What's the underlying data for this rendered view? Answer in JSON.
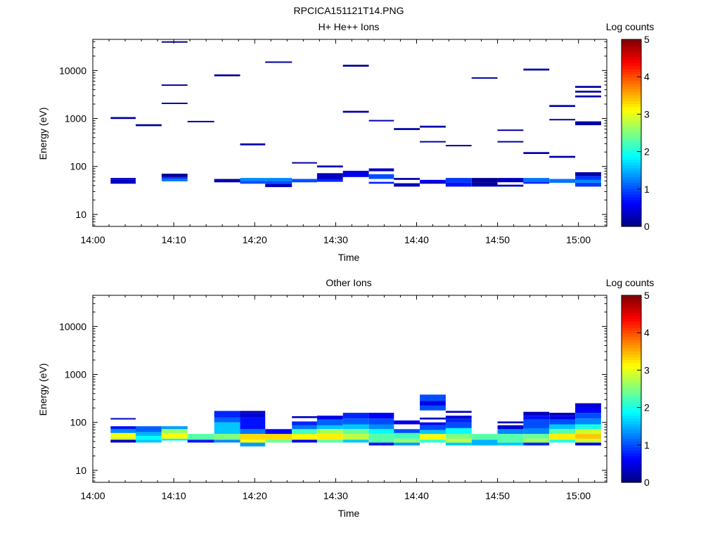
{
  "title": "RPCICA151121T14.PNG",
  "colors": {
    "frame": "#000000",
    "background": "#ffffff"
  },
  "colorbar": {
    "label": "Log counts",
    "ticks": [
      "0",
      "1",
      "2",
      "3",
      "4",
      "5"
    ],
    "range": [
      0,
      5
    ],
    "colormap": "jet"
  },
  "chart_data": [
    {
      "type": "heatmap",
      "title": "H+ He++ Ions",
      "xlabel": "Time",
      "ylabel": "Energy (eV)",
      "xticks": [
        "14:00",
        "14:10",
        "14:20",
        "14:30",
        "14:40",
        "14:50",
        "15:00"
      ],
      "yticks": [
        "10",
        "100",
        "1000",
        "10000"
      ],
      "x_range_min": [
        0,
        63.5
      ],
      "y_range_log10": [
        0.75,
        4.65
      ],
      "yscale": "log",
      "cells": [
        [
          2.2,
          5.3,
          1.72,
          1.76,
          0.3
        ],
        [
          2.2,
          5.3,
          1.64,
          1.72,
          0.35
        ],
        [
          2.2,
          5.3,
          2.99,
          3.03,
          0.2
        ],
        [
          5.3,
          8.5,
          2.84,
          2.88,
          0.1
        ],
        [
          8.5,
          11.7,
          1.69,
          1.74,
          1.2
        ],
        [
          8.5,
          11.7,
          1.74,
          1.78,
          0.9
        ],
        [
          8.5,
          11.7,
          1.78,
          1.85,
          0.15
        ],
        [
          8.5,
          11.7,
          3.3,
          3.33,
          0.2
        ],
        [
          8.5,
          11.7,
          3.68,
          3.71,
          0.2
        ],
        [
          8.5,
          11.7,
          4.58,
          4.61,
          0.1
        ],
        [
          11.7,
          15.0,
          2.92,
          2.95,
          0.2
        ],
        [
          15.0,
          18.2,
          1.67,
          1.74,
          0.2
        ],
        [
          15.0,
          18.2,
          3.88,
          3.92,
          0.1
        ],
        [
          18.2,
          21.3,
          1.64,
          1.7,
          1.0
        ],
        [
          18.2,
          21.3,
          1.7,
          1.76,
          1.3
        ],
        [
          18.2,
          21.3,
          2.44,
          2.48,
          0.2
        ],
        [
          21.3,
          24.6,
          1.57,
          1.64,
          0.3
        ],
        [
          21.3,
          24.6,
          1.64,
          1.7,
          1.0
        ],
        [
          21.3,
          24.6,
          1.7,
          1.76,
          1.3
        ],
        [
          21.3,
          24.6,
          4.16,
          4.19,
          0.1
        ],
        [
          24.6,
          27.7,
          1.67,
          1.74,
          1.0
        ],
        [
          24.6,
          27.7,
          2.06,
          2.09,
          0.2
        ],
        [
          27.7,
          30.9,
          1.68,
          1.74,
          0.8
        ],
        [
          27.7,
          30.9,
          1.74,
          1.86,
          0.3
        ],
        [
          27.7,
          30.9,
          1.98,
          2.02,
          0.2
        ],
        [
          30.9,
          34.1,
          1.78,
          1.91,
          0.5
        ],
        [
          30.9,
          34.1,
          3.12,
          3.16,
          0.2
        ],
        [
          30.9,
          34.1,
          4.08,
          4.12,
          0.1
        ],
        [
          34.1,
          37.2,
          1.64,
          1.68,
          0.8
        ],
        [
          34.1,
          37.2,
          1.74,
          1.84,
          1.0
        ],
        [
          34.1,
          37.2,
          1.9,
          1.96,
          0.3
        ],
        [
          34.1,
          37.2,
          2.94,
          2.97,
          0.2
        ],
        [
          37.2,
          40.4,
          1.58,
          1.65,
          0.3
        ],
        [
          37.2,
          40.4,
          1.72,
          1.76,
          0.2
        ],
        [
          37.2,
          40.4,
          2.76,
          2.8,
          0.2
        ],
        [
          40.4,
          43.6,
          1.64,
          1.7,
          0.3
        ],
        [
          40.4,
          43.6,
          1.68,
          1.72,
          0.6
        ],
        [
          40.4,
          43.6,
          2.5,
          2.53,
          0.2
        ],
        [
          40.4,
          43.6,
          2.81,
          2.85,
          0.2
        ],
        [
          43.6,
          46.8,
          1.58,
          1.66,
          0.7
        ],
        [
          43.6,
          46.8,
          1.66,
          1.76,
          0.9
        ],
        [
          43.6,
          46.8,
          2.42,
          2.45,
          0.2
        ],
        [
          46.8,
          50.0,
          1.58,
          1.66,
          0.2
        ],
        [
          46.8,
          50.0,
          1.66,
          1.76,
          0.1
        ],
        [
          46.8,
          50.0,
          3.83,
          3.86,
          0.2
        ],
        [
          50.0,
          53.2,
          1.58,
          1.62,
          0.3
        ],
        [
          50.0,
          53.2,
          1.67,
          1.76,
          0.3
        ],
        [
          50.0,
          53.2,
          2.5,
          2.53,
          0.2
        ],
        [
          50.0,
          53.2,
          2.74,
          2.77,
          0.2
        ],
        [
          53.2,
          56.4,
          1.64,
          1.68,
          0.8
        ],
        [
          53.2,
          56.4,
          1.68,
          1.76,
          1.2
        ],
        [
          53.2,
          56.4,
          2.26,
          2.3,
          0.2
        ],
        [
          53.2,
          56.4,
          4.0,
          4.04,
          0.2
        ],
        [
          56.4,
          59.6,
          1.66,
          1.74,
          1.2
        ],
        [
          56.4,
          59.6,
          2.18,
          2.22,
          0.2
        ],
        [
          56.4,
          59.6,
          2.96,
          2.99,
          0.2
        ],
        [
          56.4,
          59.6,
          3.24,
          3.28,
          0.2
        ],
        [
          59.6,
          62.8,
          1.58,
          1.66,
          0.9
        ],
        [
          59.6,
          62.8,
          1.66,
          1.72,
          1.3
        ],
        [
          59.6,
          62.8,
          1.72,
          1.8,
          0.9
        ],
        [
          59.6,
          62.8,
          1.8,
          1.88,
          0.2
        ],
        [
          59.6,
          62.8,
          2.86,
          2.94,
          0.2
        ],
        [
          59.6,
          62.8,
          3.44,
          3.48,
          0.2
        ],
        [
          59.6,
          62.8,
          3.54,
          3.58,
          0.2
        ],
        [
          59.6,
          62.8,
          3.64,
          3.68,
          0.2
        ]
      ]
    },
    {
      "type": "heatmap",
      "title": "Other Ions",
      "xlabel": "Time",
      "ylabel": "Energy (eV)",
      "xticks": [
        "14:00",
        "14:10",
        "14:20",
        "14:30",
        "14:40",
        "14:50",
        "15:00"
      ],
      "yticks": [
        "10",
        "100",
        "1000",
        "10000"
      ],
      "x_range_min": [
        0,
        63.5
      ],
      "y_range_log10": [
        0.75,
        4.65
      ],
      "yscale": "log",
      "cells": [
        [
          2.2,
          5.3,
          1.58,
          1.64,
          0.3
        ],
        [
          2.2,
          5.3,
          1.64,
          1.7,
          2.9
        ],
        [
          2.2,
          5.3,
          1.7,
          1.78,
          3.1
        ],
        [
          2.2,
          5.3,
          1.78,
          1.86,
          1.3
        ],
        [
          2.2,
          5.3,
          1.86,
          1.92,
          0.7
        ],
        [
          2.2,
          5.3,
          2.06,
          2.09,
          0.3
        ],
        [
          5.3,
          8.5,
          1.58,
          1.64,
          1.6
        ],
        [
          5.3,
          8.5,
          1.64,
          1.72,
          1.9
        ],
        [
          5.3,
          8.5,
          1.72,
          1.8,
          1.5
        ],
        [
          5.3,
          8.5,
          1.8,
          1.92,
          1.1
        ],
        [
          8.5,
          11.7,
          1.62,
          1.66,
          1.8
        ],
        [
          8.5,
          11.7,
          1.66,
          1.78,
          3.1
        ],
        [
          8.5,
          11.7,
          1.78,
          1.86,
          2.6
        ],
        [
          8.5,
          11.7,
          1.86,
          1.92,
          1.4
        ],
        [
          11.7,
          15.0,
          1.58,
          1.64,
          0.7
        ],
        [
          11.7,
          15.0,
          1.64,
          1.76,
          2.3
        ],
        [
          15.0,
          18.2,
          1.58,
          1.64,
          1.3
        ],
        [
          15.0,
          18.2,
          1.64,
          1.76,
          2.5
        ],
        [
          15.0,
          18.2,
          1.76,
          2.0,
          1.6
        ],
        [
          15.0,
          18.2,
          2.0,
          2.1,
          1.1
        ],
        [
          15.0,
          18.2,
          2.1,
          2.24,
          0.8
        ],
        [
          18.2,
          21.3,
          1.5,
          1.58,
          1.4
        ],
        [
          18.2,
          21.3,
          1.58,
          1.64,
          3.1
        ],
        [
          18.2,
          21.3,
          1.64,
          1.76,
          3.3
        ],
        [
          18.2,
          21.3,
          1.76,
          1.86,
          1.2
        ],
        [
          18.2,
          21.3,
          1.86,
          2.1,
          0.7
        ],
        [
          18.2,
          21.3,
          2.1,
          2.2,
          0.4
        ],
        [
          18.2,
          21.3,
          2.2,
          2.24,
          0.3
        ],
        [
          21.3,
          24.6,
          1.58,
          1.64,
          2.4
        ],
        [
          21.3,
          24.6,
          1.64,
          1.76,
          3.3
        ],
        [
          21.3,
          24.6,
          1.76,
          1.86,
          0.6
        ],
        [
          24.6,
          27.7,
          1.58,
          1.64,
          0.6
        ],
        [
          24.6,
          27.7,
          1.64,
          1.76,
          3.1
        ],
        [
          24.6,
          27.7,
          1.76,
          1.86,
          2.2
        ],
        [
          24.6,
          27.7,
          1.86,
          1.94,
          1.2
        ],
        [
          24.6,
          27.7,
          1.94,
          2.02,
          0.8
        ],
        [
          24.6,
          27.7,
          2.09,
          2.13,
          0.3
        ],
        [
          27.7,
          30.9,
          1.58,
          1.64,
          2.3
        ],
        [
          27.7,
          30.9,
          1.64,
          1.76,
          3.2
        ],
        [
          27.7,
          30.9,
          1.76,
          1.86,
          2.7
        ],
        [
          27.7,
          30.9,
          1.86,
          1.94,
          1.6
        ],
        [
          27.7,
          30.9,
          1.94,
          2.06,
          1.1
        ],
        [
          27.7,
          30.9,
          2.06,
          2.14,
          0.5
        ],
        [
          30.9,
          34.1,
          1.58,
          1.64,
          1.6
        ],
        [
          30.9,
          34.1,
          1.64,
          1.76,
          2.8
        ],
        [
          30.9,
          34.1,
          1.76,
          1.86,
          2.4
        ],
        [
          30.9,
          34.1,
          1.86,
          1.96,
          1.6
        ],
        [
          30.9,
          34.1,
          1.96,
          2.08,
          1.1
        ],
        [
          30.9,
          34.1,
          2.08,
          2.2,
          0.8
        ],
        [
          34.1,
          37.2,
          1.52,
          1.58,
          0.7
        ],
        [
          34.1,
          37.2,
          1.58,
          1.76,
          2.3
        ],
        [
          34.1,
          37.2,
          1.76,
          1.86,
          1.9
        ],
        [
          34.1,
          37.2,
          1.86,
          1.96,
          1.3
        ],
        [
          34.1,
          37.2,
          1.96,
          2.08,
          1.0
        ],
        [
          34.1,
          37.2,
          2.08,
          2.2,
          0.6
        ],
        [
          37.2,
          40.4,
          1.52,
          1.58,
          1.4
        ],
        [
          37.2,
          40.4,
          1.58,
          1.66,
          2.6
        ],
        [
          37.2,
          40.4,
          1.66,
          1.78,
          2.2
        ],
        [
          37.2,
          40.4,
          1.78,
          1.86,
          1.0
        ],
        [
          37.2,
          40.4,
          1.96,
          2.04,
          0.5
        ],
        [
          40.4,
          43.6,
          1.58,
          1.64,
          2.1
        ],
        [
          40.4,
          43.6,
          1.64,
          1.76,
          3.1
        ],
        [
          40.4,
          43.6,
          1.76,
          1.84,
          1.6
        ],
        [
          40.4,
          43.6,
          1.84,
          1.94,
          1.0
        ],
        [
          40.4,
          43.6,
          1.94,
          2.0,
          0.6
        ],
        [
          40.4,
          43.6,
          2.06,
          2.1,
          0.3
        ],
        [
          40.4,
          43.6,
          2.25,
          2.35,
          1.0
        ],
        [
          40.4,
          43.6,
          2.35,
          2.45,
          0.5
        ],
        [
          40.4,
          43.6,
          2.45,
          2.58,
          1.0
        ],
        [
          43.6,
          46.8,
          1.52,
          1.58,
          1.6
        ],
        [
          43.6,
          46.8,
          1.58,
          1.66,
          2.8
        ],
        [
          43.6,
          46.8,
          1.66,
          1.76,
          2.5
        ],
        [
          43.6,
          46.8,
          1.76,
          1.88,
          1.9
        ],
        [
          43.6,
          46.8,
          1.88,
          2.0,
          1.0
        ],
        [
          43.6,
          46.8,
          2.0,
          2.08,
          0.8
        ],
        [
          43.6,
          46.8,
          2.08,
          2.14,
          0.4
        ],
        [
          43.6,
          46.8,
          2.2,
          2.24,
          0.3
        ],
        [
          46.8,
          50.0,
          1.52,
          1.64,
          1.5
        ],
        [
          46.8,
          50.0,
          1.64,
          1.76,
          2.3
        ],
        [
          50.0,
          53.2,
          1.52,
          1.58,
          1.6
        ],
        [
          50.0,
          53.2,
          1.58,
          1.76,
          2.3
        ],
        [
          50.0,
          53.2,
          1.76,
          1.86,
          1.3
        ],
        [
          50.0,
          53.2,
          1.86,
          1.94,
          0.4
        ],
        [
          50.0,
          53.2,
          1.98,
          2.02,
          0.3
        ],
        [
          53.2,
          56.4,
          1.52,
          1.58,
          0.8
        ],
        [
          53.2,
          56.4,
          1.58,
          1.66,
          2.7
        ],
        [
          53.2,
          56.4,
          1.66,
          1.76,
          2.4
        ],
        [
          53.2,
          56.4,
          1.76,
          1.88,
          1.3
        ],
        [
          53.2,
          56.4,
          1.88,
          2.06,
          1.0
        ],
        [
          53.2,
          56.4,
          2.06,
          2.14,
          0.7
        ],
        [
          53.2,
          56.4,
          2.14,
          2.22,
          0.3
        ],
        [
          56.4,
          59.6,
          1.58,
          1.64,
          2.0
        ],
        [
          56.4,
          59.6,
          1.64,
          1.76,
          3.2
        ],
        [
          56.4,
          59.6,
          1.76,
          1.86,
          2.3
        ],
        [
          56.4,
          59.6,
          1.86,
          1.96,
          1.6
        ],
        [
          56.4,
          59.6,
          1.96,
          2.06,
          1.0
        ],
        [
          56.4,
          59.6,
          2.06,
          2.14,
          0.5
        ],
        [
          56.4,
          59.6,
          2.14,
          2.2,
          0.3
        ],
        [
          59.6,
          62.8,
          1.52,
          1.58,
          0.6
        ],
        [
          59.6,
          62.8,
          1.58,
          1.66,
          2.9
        ],
        [
          59.6,
          62.8,
          1.66,
          1.76,
          3.4
        ],
        [
          59.6,
          62.8,
          1.76,
          1.86,
          2.9
        ],
        [
          59.6,
          62.8,
          1.86,
          1.96,
          2.0
        ],
        [
          59.6,
          62.8,
          1.96,
          2.08,
          1.3
        ],
        [
          59.6,
          62.8,
          2.08,
          2.2,
          1.0
        ],
        [
          59.6,
          62.8,
          2.2,
          2.32,
          0.6
        ],
        [
          59.6,
          62.8,
          2.32,
          2.4,
          0.4
        ]
      ]
    }
  ]
}
